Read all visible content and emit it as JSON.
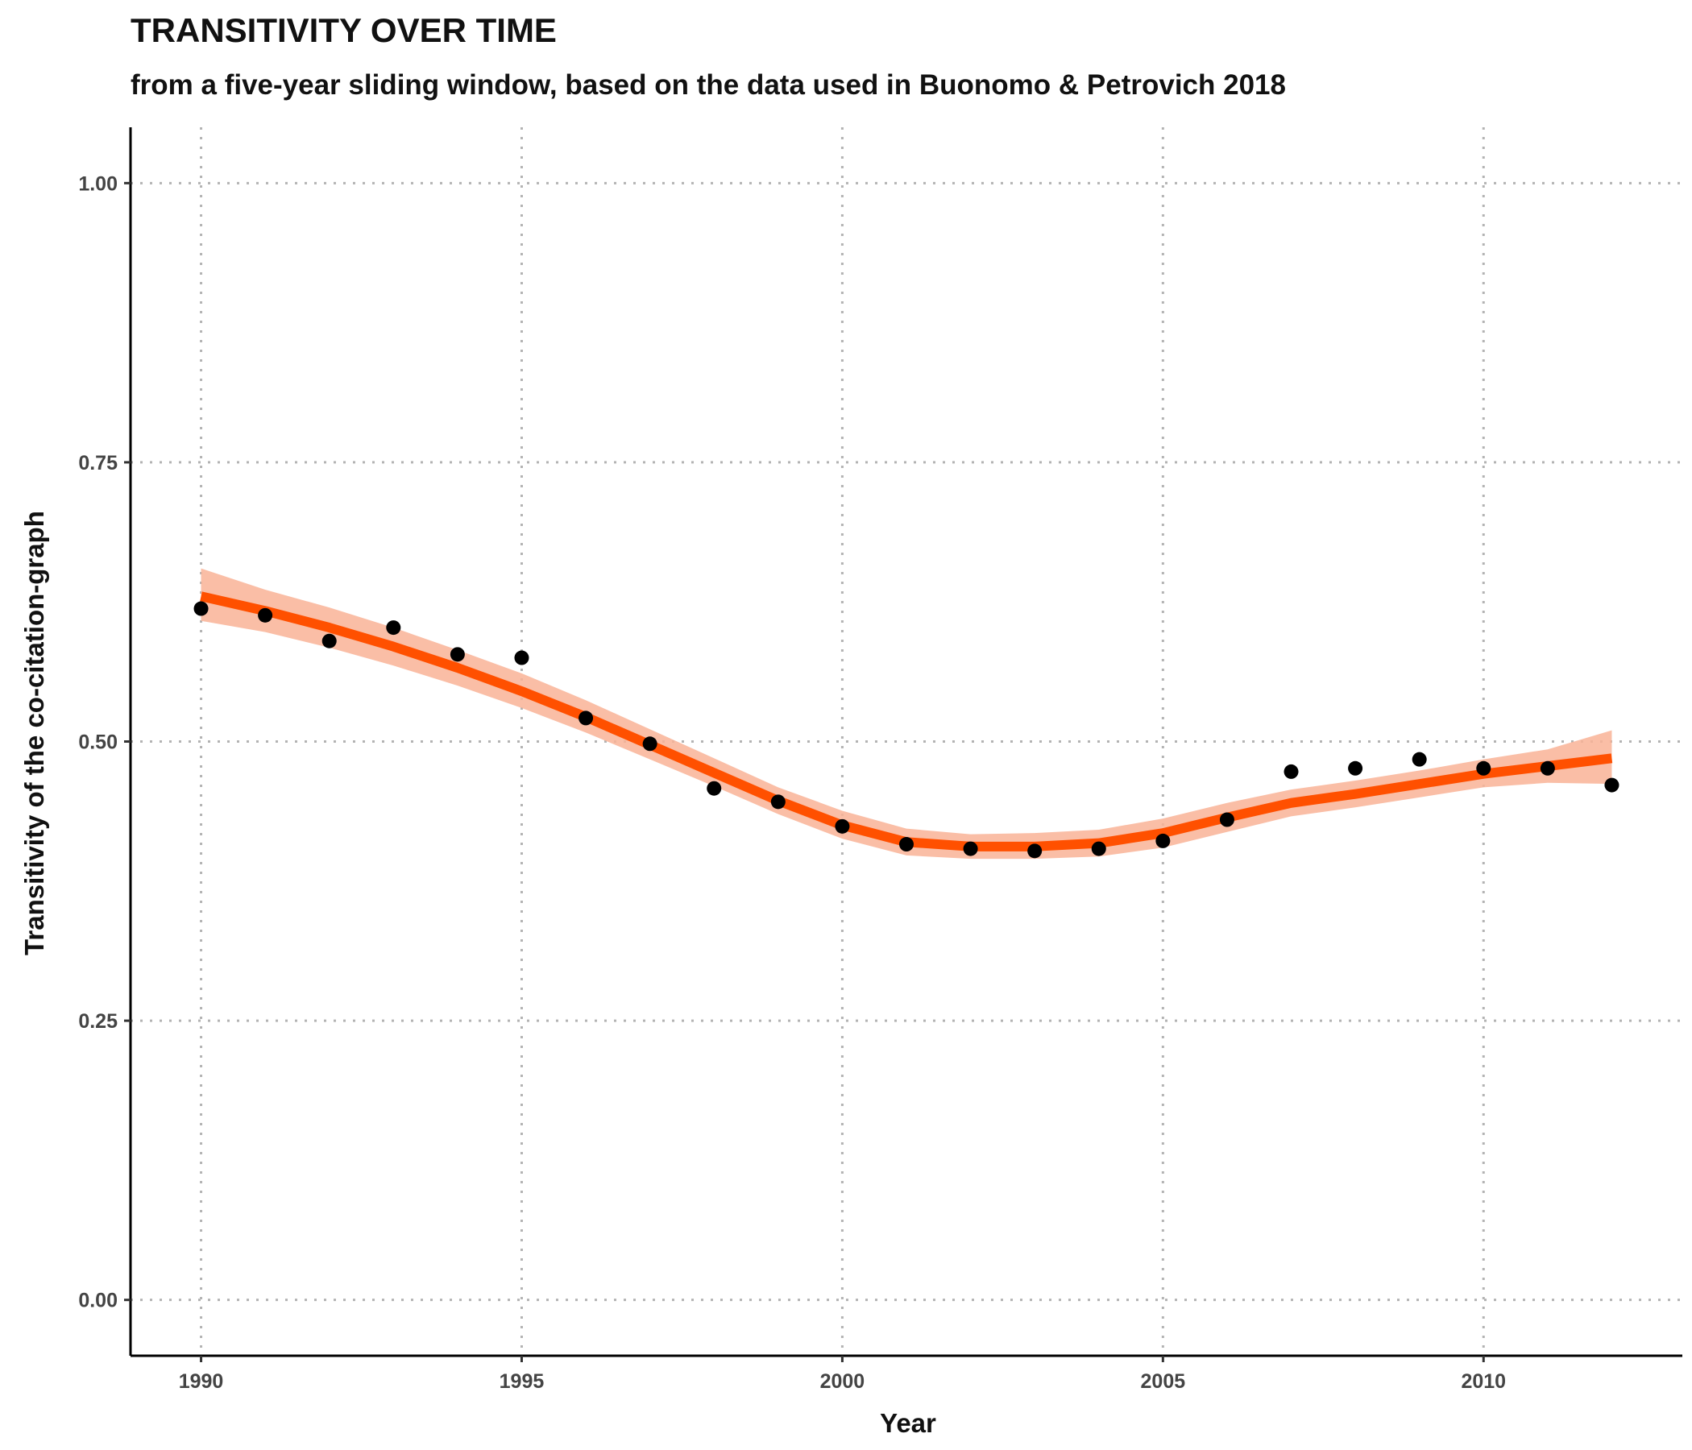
{
  "chart_data": {
    "type": "scatter",
    "title": "TRANSITIVITY OVER TIME",
    "subtitle": "from a five-year sliding window, based on the data used in Buonomo & Petrovich 2018",
    "xlabel": "Year",
    "ylabel": "Transitivity of the co-citation-graph",
    "xlim": [
      1988.9,
      2013.1
    ],
    "ylim": [
      -0.05,
      1.05
    ],
    "x_ticks": [
      1990,
      1995,
      2000,
      2005,
      2010
    ],
    "x_tick_labels": [
      "1990",
      "1995",
      "2000",
      "2005",
      "2010"
    ],
    "y_ticks": [
      0,
      0.25,
      0.5,
      0.75,
      1
    ],
    "y_tick_labels": [
      "0.00",
      "0.25",
      "0.50",
      "0.75",
      "1.00"
    ],
    "grid": true,
    "legend": "none",
    "points": {
      "x": [
        1990,
        1991,
        1992,
        1993,
        1994,
        1995,
        1996,
        1997,
        1998,
        1999,
        2000,
        2001,
        2002,
        2003,
        2004,
        2005,
        2006,
        2007,
        2008,
        2009,
        2010,
        2011,
        2012
      ],
      "y": [
        0.619,
        0.613,
        0.59,
        0.602,
        0.578,
        0.575,
        0.521,
        0.498,
        0.458,
        0.446,
        0.424,
        0.408,
        0.404,
        0.402,
        0.404,
        0.411,
        0.43,
        0.473,
        0.476,
        0.484,
        0.476,
        0.476,
        0.461
      ],
      "color": "#000000"
    },
    "smooth": {
      "x": [
        1990,
        1991,
        1992,
        1993,
        1994,
        1995,
        1996,
        1997,
        1998,
        1999,
        2000,
        2001,
        2002,
        2003,
        2004,
        2005,
        2006,
        2007,
        2008,
        2009,
        2010,
        2011,
        2012
      ],
      "y": [
        0.63,
        0.617,
        0.602,
        0.585,
        0.566,
        0.545,
        0.522,
        0.497,
        0.472,
        0.447,
        0.425,
        0.41,
        0.406,
        0.406,
        0.409,
        0.418,
        0.432,
        0.445,
        0.453,
        0.462,
        0.471,
        0.478,
        0.485
      ],
      "ymin": [
        0.608,
        0.598,
        0.584,
        0.568,
        0.55,
        0.53,
        0.508,
        0.484,
        0.46,
        0.435,
        0.413,
        0.398,
        0.395,
        0.395,
        0.397,
        0.405,
        0.419,
        0.433,
        0.441,
        0.45,
        0.459,
        0.463,
        0.462
      ],
      "ymax": [
        0.655,
        0.636,
        0.62,
        0.602,
        0.582,
        0.561,
        0.537,
        0.511,
        0.485,
        0.459,
        0.438,
        0.422,
        0.417,
        0.418,
        0.421,
        0.431,
        0.445,
        0.457,
        0.465,
        0.474,
        0.484,
        0.493,
        0.51
      ],
      "line_color": "#ff5000",
      "band_color": "#f9b397"
    }
  }
}
